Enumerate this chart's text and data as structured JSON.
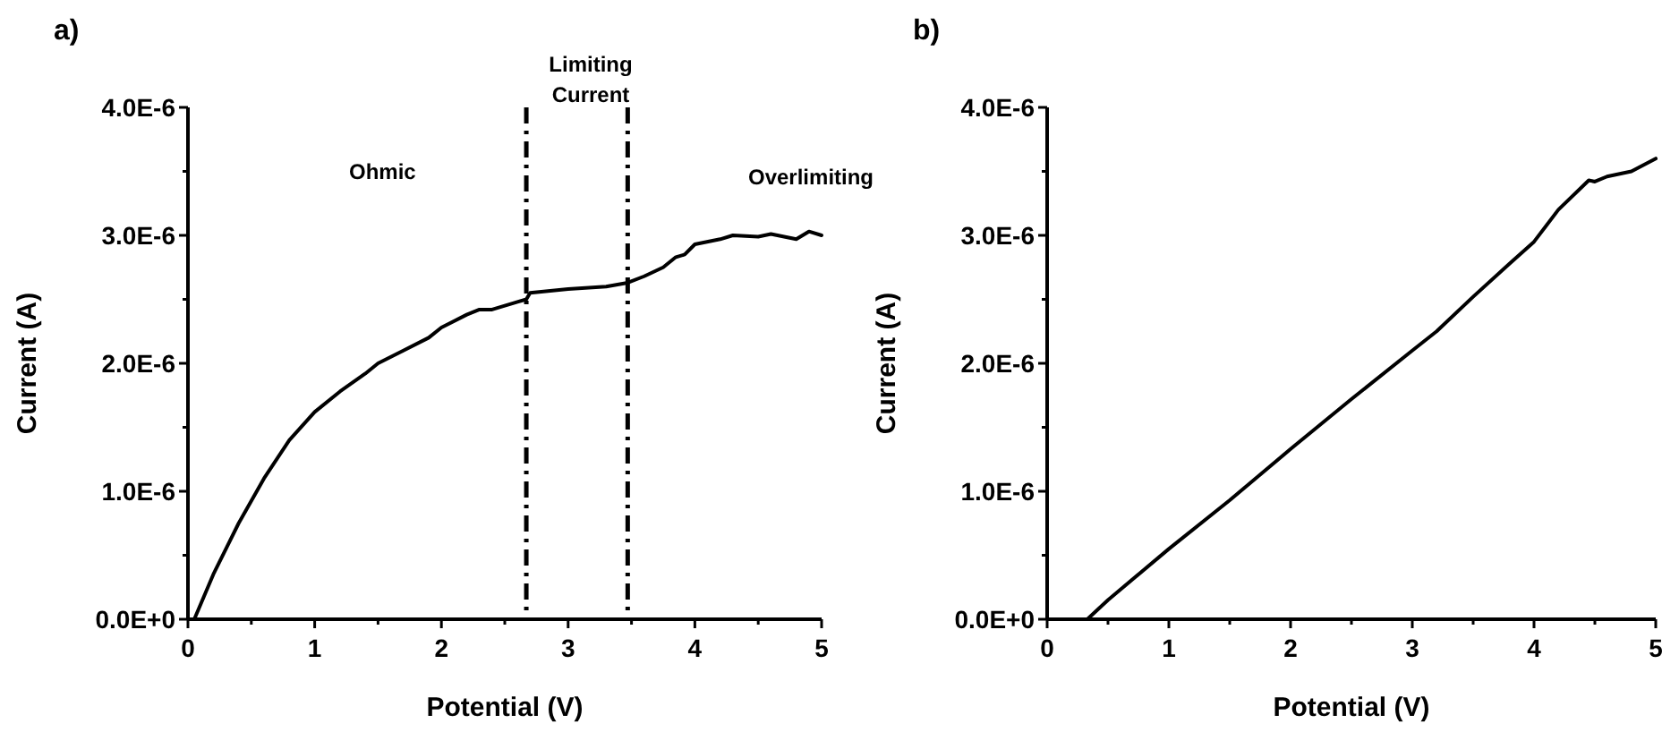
{
  "chart_data": [
    {
      "type": "line",
      "title": "a)",
      "xlabel": "Potential (V)",
      "ylabel": "Current (A)",
      "annotations": [
        "Ohmic",
        "Limiting Current",
        "Overlimiting"
      ],
      "x": [
        0.05,
        0.2,
        0.4,
        0.6,
        0.8,
        1.0,
        1.2,
        1.4,
        1.5,
        1.7,
        1.9,
        2.0,
        2.2,
        2.3,
        2.4,
        2.6,
        2.67,
        2.7,
        3.0,
        3.3,
        3.47,
        3.6,
        3.75,
        3.85,
        3.92,
        4.0,
        4.2,
        4.3,
        4.5,
        4.6,
        4.8,
        4.9,
        5.0
      ],
      "series": [
        {
          "color": "#000000",
          "values": [
            0,
            3.5e-07,
            7.5e-07,
            1.1e-06,
            1.4e-06,
            1.62e-06,
            1.78e-06,
            1.92e-06,
            2e-06,
            2.1e-06,
            2.2e-06,
            2.28e-06,
            2.38e-06,
            2.42e-06,
            2.42e-06,
            2.48e-06,
            2.5e-06,
            2.55e-06,
            2.58e-06,
            2.6e-06,
            2.63e-06,
            2.68e-06,
            2.75e-06,
            2.83e-06,
            2.85e-06,
            2.93e-06,
            2.97e-06,
            3e-06,
            2.99e-06,
            3.01e-06,
            2.97e-06,
            3.03e-06,
            3e-06
          ]
        }
      ],
      "ref_lines": [
        {
          "axis": "x",
          "value": 2.67,
          "color": "#000000",
          "line_style": "dashdot"
        },
        {
          "axis": "x",
          "value": 3.47,
          "color": "#000000",
          "line_style": "dashdot"
        }
      ],
      "xlim": [
        0,
        5
      ],
      "ylim": [
        0,
        4e-06
      ],
      "xticks": [
        0,
        {
          "value": 0.5,
          "label": null
        },
        1,
        {
          "value": 1.5,
          "label": null
        },
        2,
        {
          "value": 2.5,
          "label": null
        },
        3,
        {
          "value": 3.5,
          "label": null
        },
        4,
        {
          "value": 4.5,
          "label": null
        },
        5
      ],
      "yticks": [
        {
          "value": 0,
          "label": "0.0E+0"
        },
        {
          "value": 5e-07,
          "label": null
        },
        {
          "value": 1e-06,
          "label": "1.0E-6"
        },
        {
          "value": 1.5e-06,
          "label": null
        },
        {
          "value": 2e-06,
          "label": "2.0E-6"
        },
        {
          "value": 2.5e-06,
          "label": null
        },
        {
          "value": 3e-06,
          "label": "3.0E-6"
        },
        {
          "value": 3.5e-06,
          "label": null
        },
        {
          "value": 4e-06,
          "label": "4.0E-6"
        }
      ],
      "grid": false,
      "marker": "none",
      "line_style": "solid"
    },
    {
      "type": "line",
      "title": "b)",
      "xlabel": "Potential (V)",
      "ylabel": "Current (A)",
      "x": [
        0.27,
        0.33,
        0.5,
        1.0,
        1.5,
        2.0,
        2.5,
        3.0,
        3.2,
        3.5,
        3.8,
        4.0,
        4.2,
        4.45,
        4.5,
        4.6,
        4.8,
        5.0
      ],
      "series": [
        {
          "color": "#000000",
          "values": [
            0,
            0,
            1.5e-07,
            5.5e-07,
            9.3e-07,
            1.33e-06,
            1.72e-06,
            2.1e-06,
            2.25e-06,
            2.52e-06,
            2.78e-06,
            2.95e-06,
            3.2e-06,
            3.43e-06,
            3.42e-06,
            3.46e-06,
            3.5e-06,
            3.6e-06
          ]
        }
      ],
      "xlim": [
        0,
        5
      ],
      "ylim": [
        0,
        4e-06
      ],
      "xticks": [
        0,
        {
          "value": 0.5,
          "label": null
        },
        1,
        {
          "value": 1.5,
          "label": null
        },
        2,
        {
          "value": 2.5,
          "label": null
        },
        3,
        {
          "value": 3.5,
          "label": null
        },
        4,
        {
          "value": 4.5,
          "label": null
        },
        5
      ],
      "yticks": [
        {
          "value": 0,
          "label": "0.0E+0"
        },
        {
          "value": 5e-07,
          "label": null
        },
        {
          "value": 1e-06,
          "label": "1.0E-6"
        },
        {
          "value": 1.5e-06,
          "label": null
        },
        {
          "value": 2e-06,
          "label": "2.0E-6"
        },
        {
          "value": 2.5e-06,
          "label": null
        },
        {
          "value": 3e-06,
          "label": "3.0E-6"
        },
        {
          "value": 3.5e-06,
          "label": null
        },
        {
          "value": 4e-06,
          "label": "4.0E-6"
        }
      ],
      "grid": false,
      "marker": "none",
      "line_style": "solid"
    }
  ]
}
